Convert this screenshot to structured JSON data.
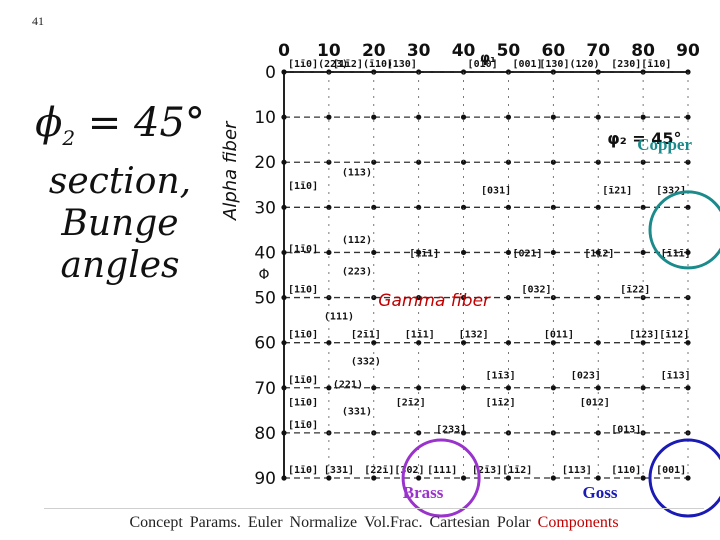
{
  "slide_number": "41",
  "title": {
    "phi": "ϕ",
    "sub": "2",
    "rest": " = 45°",
    "line2": "section,",
    "line3": "Bunge",
    "line4": "angles"
  },
  "alpha_fiber_label": "Alpha fiber",
  "gamma_fiber_label": "Gamma fiber",
  "chart_data": {
    "type": "table",
    "x_axis_ticks": [
      "0",
      "10",
      "20",
      "30",
      "40",
      "50",
      "60",
      "70",
      "80",
      "90"
    ],
    "x_axis_symbol": "φ₁",
    "y_axis_ticks": [
      "0",
      "10",
      "20",
      "30",
      "40",
      "50",
      "60",
      "70",
      "80",
      "90"
    ],
    "y_axis_symbol": "Φ",
    "section_label": "φ₂ = 45°",
    "cell_labels": [
      {
        "phi1": 0,
        "Phi": 0,
        "text": "[1ī0](223)"
      },
      {
        "phi1": 10,
        "Phi": 0,
        "text": "[1ī2](ī10)"
      },
      {
        "phi1": 22,
        "Phi": 0,
        "text": "[130]"
      },
      {
        "phi1": 40,
        "Phi": 0,
        "text": "[010]"
      },
      {
        "phi1": 50,
        "Phi": 0,
        "text": "[001]"
      },
      {
        "phi1": 56,
        "Phi": 0,
        "text": "[130](120)"
      },
      {
        "phi1": 72,
        "Phi": 0,
        "text": "[230][ī10]"
      },
      {
        "phi1": 0,
        "Phi": 27,
        "text": "[1ī0]"
      },
      {
        "phi1": 12,
        "Phi": 24,
        "text": "(113)"
      },
      {
        "phi1": 43,
        "Phi": 28,
        "text": "[031]"
      },
      {
        "phi1": 70,
        "Phi": 28,
        "text": "[ī21]"
      },
      {
        "phi1": 82,
        "Phi": 28,
        "text": "[332]"
      },
      {
        "phi1": 0,
        "Phi": 41,
        "text": "[1ī0]"
      },
      {
        "phi1": 12,
        "Phi": 39,
        "text": "(112)"
      },
      {
        "phi1": 27,
        "Phi": 42,
        "text": "[1ī1]"
      },
      {
        "phi1": 50,
        "Phi": 42,
        "text": "[021]"
      },
      {
        "phi1": 66,
        "Phi": 42,
        "text": "[1ī2]"
      },
      {
        "phi1": 83,
        "Phi": 42,
        "text": "[ī1ī]"
      },
      {
        "phi1": 12,
        "Phi": 46,
        "text": "(223)"
      },
      {
        "phi1": 0,
        "Phi": 50,
        "text": "[1ī0]"
      },
      {
        "phi1": 52,
        "Phi": 50,
        "text": "[032]"
      },
      {
        "phi1": 74,
        "Phi": 50,
        "text": "[ī22]"
      },
      {
        "phi1": 8,
        "Phi": 56,
        "text": "(111)"
      },
      {
        "phi1": 0,
        "Phi": 60,
        "text": "[1ī0]"
      },
      {
        "phi1": 14,
        "Phi": 60,
        "text": "[2ī1]"
      },
      {
        "phi1": 26,
        "Phi": 60,
        "text": "[1ī1]"
      },
      {
        "phi1": 38,
        "Phi": 60,
        "text": "[132]"
      },
      {
        "phi1": 57,
        "Phi": 60,
        "text": "[011]"
      },
      {
        "phi1": 76,
        "Phi": 60,
        "text": "[123][ī12]"
      },
      {
        "phi1": 14,
        "Phi": 66,
        "text": "(332)"
      },
      {
        "phi1": 0,
        "Phi": 70,
        "text": "[1ī0]"
      },
      {
        "phi1": 10,
        "Phi": 71,
        "text": "(221)"
      },
      {
        "phi1": 44,
        "Phi": 69,
        "text": "[1ī3]"
      },
      {
        "phi1": 63,
        "Phi": 69,
        "text": "[023]"
      },
      {
        "phi1": 83,
        "Phi": 69,
        "text": "[ī13]"
      },
      {
        "phi1": 0,
        "Phi": 75,
        "text": "[1ī0]"
      },
      {
        "phi1": 12,
        "Phi": 77,
        "text": "(331)"
      },
      {
        "phi1": 24,
        "Phi": 75,
        "text": "[2ī2]"
      },
      {
        "phi1": 44,
        "Phi": 75,
        "text": "[1ī2]"
      },
      {
        "phi1": 65,
        "Phi": 75,
        "text": "[012]"
      },
      {
        "phi1": 0,
        "Phi": 80,
        "text": "[1ī0]"
      },
      {
        "phi1": 33,
        "Phi": 81,
        "text": "[233]"
      },
      {
        "phi1": 72,
        "Phi": 81,
        "text": "[013]"
      },
      {
        "phi1": 0,
        "Phi": 90,
        "text": "[1ī0]"
      },
      {
        "phi1": 8,
        "Phi": 90,
        "text": "[331]"
      },
      {
        "phi1": 17,
        "Phi": 90,
        "text": "[22ī][302]"
      },
      {
        "phi1": 31,
        "Phi": 90,
        "text": "[111]"
      },
      {
        "phi1": 41,
        "Phi": 90,
        "text": "[2ī3][1ī2]"
      },
      {
        "phi1": 61,
        "Phi": 90,
        "text": "[113]"
      },
      {
        "phi1": 72,
        "Phi": 90,
        "text": "[110]"
      },
      {
        "phi1": 82,
        "Phi": 90,
        "text": "[001]"
      }
    ],
    "components": [
      {
        "name": "Copper",
        "color": "#1a8a8a",
        "phi1": 90,
        "Phi": 35
      },
      {
        "name": "Brass",
        "color": "#9933cc",
        "phi1": 35,
        "Phi": 90
      },
      {
        "name": "Goss",
        "color": "#1a1ab4",
        "phi1": 90,
        "Phi": 90
      }
    ],
    "grid": true
  },
  "nav": {
    "items": [
      "Concept",
      "Params.",
      "Euler",
      "Normalize",
      "Vol.Frac.",
      "Cartesian",
      "Polar",
      "Components"
    ],
    "active": "Components",
    "active_color": "#c00000"
  }
}
